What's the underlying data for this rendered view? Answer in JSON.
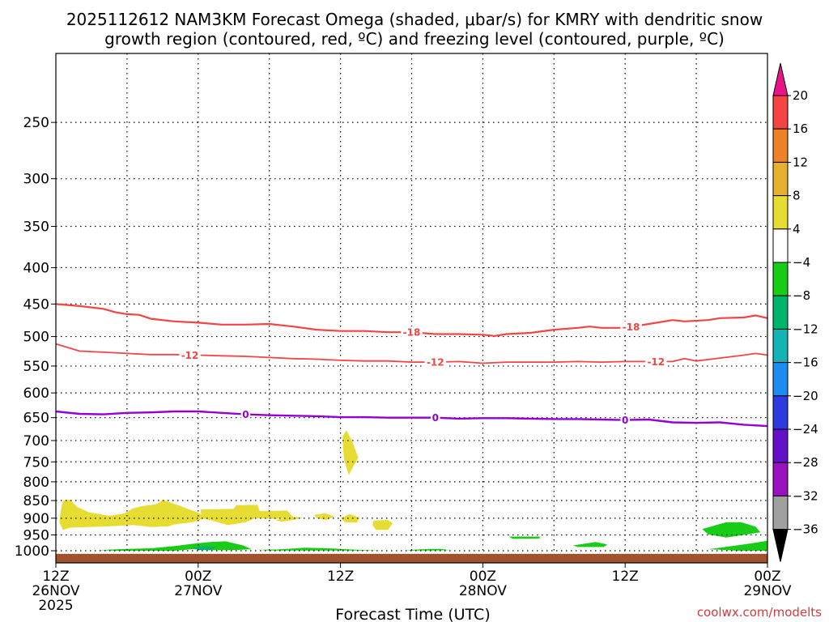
{
  "chart_data": {
    "type": "time-height cross-section",
    "title_line1": "2025112612 NAM3KM Forecast Omega (shaded, μbar/s) for KMRY with dendritic snow",
    "title_line2": "growth region (contoured, red, ºC) and freezing level (contoured, purple, ºC)",
    "xlabel": "Forecast Time (UTC)",
    "ylabel": "",
    "credit": "coolwx.com/modelts",
    "y_axis": {
      "unit": "hPa",
      "log_scale": true,
      "range": [
        1040,
        200
      ],
      "ticks": [
        250,
        300,
        350,
        400,
        450,
        500,
        550,
        600,
        650,
        700,
        750,
        800,
        850,
        900,
        950,
        1000
      ],
      "tick_labels": [
        "250",
        "300",
        "350",
        "400",
        "450",
        "500",
        "550",
        "600",
        "650",
        "700",
        "750",
        "800",
        "850",
        "900",
        "950",
        "1000"
      ]
    },
    "x_axis": {
      "unit": "forecast hour",
      "range": [
        0,
        60
      ],
      "ticks": [
        {
          "hour": 0,
          "lines": [
            "12Z",
            "26NOV",
            "2025"
          ]
        },
        {
          "hour": 12,
          "lines": [
            "00Z",
            "27NOV"
          ]
        },
        {
          "hour": 24,
          "lines": [
            "12Z"
          ]
        },
        {
          "hour": 36,
          "lines": [
            "00Z",
            "28NOV"
          ]
        },
        {
          "hour": 48,
          "lines": [
            "12Z"
          ]
        },
        {
          "hour": 60,
          "lines": [
            "00Z",
            "29NOV"
          ]
        }
      ],
      "gridline_hours": [
        6,
        12,
        18,
        24,
        30,
        36,
        42,
        48,
        54
      ]
    },
    "colorbar": {
      "top_arrow": "#e8158a",
      "bottom_arrow": "#000000",
      "boundaries": [
        "20",
        "16",
        "12",
        "8",
        "4",
        "−4",
        "−8",
        "−12",
        "−16",
        "−20",
        "−24",
        "−28",
        "−32",
        "−36"
      ],
      "colors": [
        "#f44444",
        "#ee8228",
        "#e6b030",
        "#e6dc32",
        "#ffffff",
        "#18cc18",
        "#00b46e",
        "#14b4b4",
        "#1e8cf0",
        "#2a3cde",
        "#6410c8",
        "#9a12c0",
        "#a0a0a0"
      ]
    },
    "ground": {
      "color": "#a0522d",
      "top_hpa": 1010
    },
    "contours": [
      {
        "name": "-18",
        "label": "-18",
        "color": "#f44444",
        "width": 2.2,
        "points": [
          [
            0,
            450
          ],
          [
            2,
            453
          ],
          [
            4,
            457
          ],
          [
            5,
            462
          ],
          [
            6,
            465
          ],
          [
            7,
            466
          ],
          [
            8,
            472
          ],
          [
            10,
            476
          ],
          [
            12,
            478
          ],
          [
            14,
            481
          ],
          [
            16,
            481
          ],
          [
            18,
            480
          ],
          [
            20,
            484
          ],
          [
            22,
            489
          ],
          [
            24,
            491
          ],
          [
            26,
            491
          ],
          [
            28,
            493
          ],
          [
            30,
            493
          ],
          [
            32,
            496
          ],
          [
            34,
            496
          ],
          [
            36,
            497
          ],
          [
            37,
            499
          ],
          [
            38,
            496
          ],
          [
            40,
            494
          ],
          [
            42,
            489
          ],
          [
            44,
            486
          ],
          [
            45,
            484
          ],
          [
            46,
            486
          ],
          [
            48,
            486
          ],
          [
            50,
            480
          ],
          [
            52,
            474
          ],
          [
            53,
            476
          ],
          [
            55,
            474
          ],
          [
            56,
            471
          ],
          [
            58,
            470
          ],
          [
            59,
            467
          ],
          [
            60,
            471
          ]
        ],
        "label_positions": [
          30,
          48.5
        ]
      },
      {
        "name": "-12",
        "label": "-12",
        "color": "#f44444",
        "width": 1.8,
        "points": [
          [
            0,
            512
          ],
          [
            2,
            524
          ],
          [
            4,
            526
          ],
          [
            6,
            528
          ],
          [
            8,
            530
          ],
          [
            10,
            530
          ],
          [
            12,
            531
          ],
          [
            14,
            532
          ],
          [
            16,
            533
          ],
          [
            18,
            535
          ],
          [
            20,
            537
          ],
          [
            22,
            538
          ],
          [
            24,
            540
          ],
          [
            26,
            541
          ],
          [
            28,
            541
          ],
          [
            30,
            543
          ],
          [
            32,
            543
          ],
          [
            34,
            542
          ],
          [
            36,
            545
          ],
          [
            38,
            543
          ],
          [
            40,
            543
          ],
          [
            42,
            543
          ],
          [
            44,
            542
          ],
          [
            46,
            543
          ],
          [
            48,
            542
          ],
          [
            50,
            542
          ],
          [
            52,
            542
          ],
          [
            53,
            537
          ],
          [
            54,
            541
          ],
          [
            56,
            536
          ],
          [
            58,
            531
          ],
          [
            59,
            528
          ],
          [
            60,
            531
          ]
        ],
        "label_positions": [
          11.3,
          32,
          50.6
        ]
      },
      {
        "name": "0",
        "label": "0",
        "color": "#9400d3",
        "width": 2.4,
        "points": [
          [
            0,
            637
          ],
          [
            2,
            642
          ],
          [
            4,
            643
          ],
          [
            6,
            640
          ],
          [
            8,
            639
          ],
          [
            10,
            637
          ],
          [
            12,
            637
          ],
          [
            14,
            640
          ],
          [
            16,
            643
          ],
          [
            18,
            645
          ],
          [
            20,
            646
          ],
          [
            22,
            647
          ],
          [
            24,
            649
          ],
          [
            26,
            649
          ],
          [
            28,
            650
          ],
          [
            30,
            650
          ],
          [
            32,
            650
          ],
          [
            34,
            652
          ],
          [
            36,
            651
          ],
          [
            38,
            651
          ],
          [
            40,
            652
          ],
          [
            42,
            653
          ],
          [
            44,
            653
          ],
          [
            46,
            654
          ],
          [
            48,
            655
          ],
          [
            50,
            654
          ],
          [
            52,
            660
          ],
          [
            54,
            661
          ],
          [
            56,
            660
          ],
          [
            58,
            665
          ],
          [
            60,
            668
          ]
        ],
        "label_positions": [
          16,
          32,
          48
        ]
      }
    ],
    "shaded_regions": [
      {
        "name": "yellow-left-band",
        "color": "#e6dc32",
        "polygon": [
          [
            0.6,
            850
          ],
          [
            1.2,
            848
          ],
          [
            1.8,
            868
          ],
          [
            2.8,
            883
          ],
          [
            4.5,
            893
          ],
          [
            5.8,
            886
          ],
          [
            6.5,
            872
          ],
          [
            7.2,
            866
          ],
          [
            8.5,
            860
          ],
          [
            9.0,
            848
          ],
          [
            10.5,
            865
          ],
          [
            11.2,
            874
          ],
          [
            12.0,
            884
          ],
          [
            12.6,
            900
          ],
          [
            11.5,
            912
          ],
          [
            10.0,
            918
          ],
          [
            9.5,
            924
          ],
          [
            8.0,
            926
          ],
          [
            6.5,
            920
          ],
          [
            4.5,
            924
          ],
          [
            2.8,
            926
          ],
          [
            1.2,
            928
          ],
          [
            0.6,
            935
          ],
          [
            0.3,
            912
          ],
          [
            0.4,
            880
          ]
        ]
      },
      {
        "name": "yellow-mid-band",
        "color": "#e6dc32",
        "polygon": [
          [
            12.2,
            875
          ],
          [
            15.0,
            873
          ],
          [
            15.2,
            863
          ],
          [
            17.0,
            862
          ],
          [
            17.2,
            880
          ],
          [
            19.5,
            878
          ],
          [
            20.0,
            897
          ],
          [
            18.5,
            902
          ],
          [
            16.8,
            900
          ],
          [
            16.0,
            912
          ],
          [
            14.5,
            920
          ],
          [
            13.5,
            910
          ],
          [
            12.3,
            900
          ]
        ]
      },
      {
        "name": "yellow-blob-1",
        "color": "#e6dc32",
        "polygon": [
          [
            18.5,
            905
          ],
          [
            20.0,
            896
          ],
          [
            20.8,
            898
          ],
          [
            20.0,
            905
          ],
          [
            19.0,
            910
          ]
        ]
      },
      {
        "name": "yellow-blob-2",
        "color": "#e6dc32",
        "polygon": [
          [
            21.8,
            890
          ],
          [
            22.7,
            886
          ],
          [
            23.5,
            895
          ],
          [
            22.8,
            905
          ],
          [
            22.0,
            900
          ]
        ]
      },
      {
        "name": "yellow-blob-3",
        "color": "#e6dc32",
        "polygon": [
          [
            24.0,
            900
          ],
          [
            24.8,
            888
          ],
          [
            25.6,
            899
          ],
          [
            25.4,
            913
          ],
          [
            24.4,
            912
          ]
        ]
      },
      {
        "name": "yellow-blob-4",
        "color": "#e6dc32",
        "polygon": [
          [
            26.8,
            907
          ],
          [
            28.0,
            905
          ],
          [
            28.4,
            915
          ],
          [
            28.0,
            935
          ],
          [
            27.0,
            935
          ],
          [
            26.7,
            920
          ]
        ]
      },
      {
        "name": "yellow-spike",
        "color": "#e6dc32",
        "polygon": [
          [
            24.5,
            677
          ],
          [
            25.0,
            703
          ],
          [
            25.5,
            740
          ],
          [
            25.0,
            765
          ],
          [
            24.7,
            783
          ],
          [
            24.3,
            745
          ],
          [
            24.2,
            710
          ],
          [
            24.2,
            690
          ]
        ]
      },
      {
        "name": "green-low-band",
        "color": "#18cc18",
        "polygon": [
          [
            3.5,
            998
          ],
          [
            6.0,
            994
          ],
          [
            8.0,
            992
          ],
          [
            10.0,
            985
          ],
          [
            11.5,
            978
          ],
          [
            13.0,
            972
          ],
          [
            14.3,
            970
          ],
          [
            15.8,
            983
          ],
          [
            16.5,
            995
          ],
          [
            15.0,
            998
          ],
          [
            13.0,
            998
          ],
          [
            11.5,
            995
          ],
          [
            10.0,
            1000
          ],
          [
            8.0,
            1000
          ],
          [
            5.0,
            1000
          ]
        ]
      },
      {
        "name": "teal-low-spot",
        "color": "#00b46e",
        "polygon": [
          [
            11.5,
            990
          ],
          [
            12.5,
            985
          ],
          [
            13.5,
            988
          ],
          [
            13.0,
            998
          ],
          [
            12.0,
            998
          ]
        ]
      },
      {
        "name": "green-low-2",
        "color": "#18cc18",
        "polygon": [
          [
            17.0,
            997
          ],
          [
            18.5,
            996
          ],
          [
            19.5,
            994
          ],
          [
            21.0,
            990
          ],
          [
            23.0,
            992
          ],
          [
            25.5,
            997
          ],
          [
            27.5,
            999
          ],
          [
            25.0,
            999
          ],
          [
            21.0,
            999
          ],
          [
            18.0,
            999
          ]
        ]
      },
      {
        "name": "green-low-3",
        "color": "#18cc18",
        "polygon": [
          [
            29.5,
            998
          ],
          [
            31.5,
            994
          ],
          [
            32.5,
            994
          ],
          [
            33.2,
            998
          ],
          [
            32.0,
            999
          ],
          [
            30.0,
            999
          ]
        ]
      },
      {
        "name": "green-low-4",
        "color": "#18cc18",
        "polygon": [
          [
            35.0,
            999
          ],
          [
            35.8,
            999
          ],
          [
            35.7,
            1000
          ],
          [
            35.2,
            1000
          ]
        ]
      },
      {
        "name": "green-mid-1",
        "color": "#18cc18",
        "polygon": [
          [
            38.2,
            955
          ],
          [
            40.8,
            955
          ],
          [
            40.8,
            961
          ],
          [
            38.5,
            962
          ]
        ]
      },
      {
        "name": "green-mid-2",
        "color": "#18cc18",
        "polygon": [
          [
            43.6,
            983
          ],
          [
            45.5,
            972
          ],
          [
            46.5,
            980
          ],
          [
            46.2,
            988
          ],
          [
            44.0,
            988
          ]
        ]
      },
      {
        "name": "green-right-blob",
        "color": "#18cc18",
        "polygon": [
          [
            54.5,
            932
          ],
          [
            56.5,
            912
          ],
          [
            57.8,
            912
          ],
          [
            59.0,
            925
          ],
          [
            59.4,
            942
          ],
          [
            58.0,
            950
          ],
          [
            56.5,
            958
          ],
          [
            55.0,
            948
          ]
        ]
      },
      {
        "name": "green-right-low",
        "color": "#18cc18",
        "polygon": [
          [
            55.0,
            995
          ],
          [
            57.0,
            985
          ],
          [
            58.5,
            977
          ],
          [
            60.0,
            968
          ],
          [
            60.0,
            1000
          ],
          [
            57.5,
            1000
          ]
        ]
      }
    ]
  }
}
